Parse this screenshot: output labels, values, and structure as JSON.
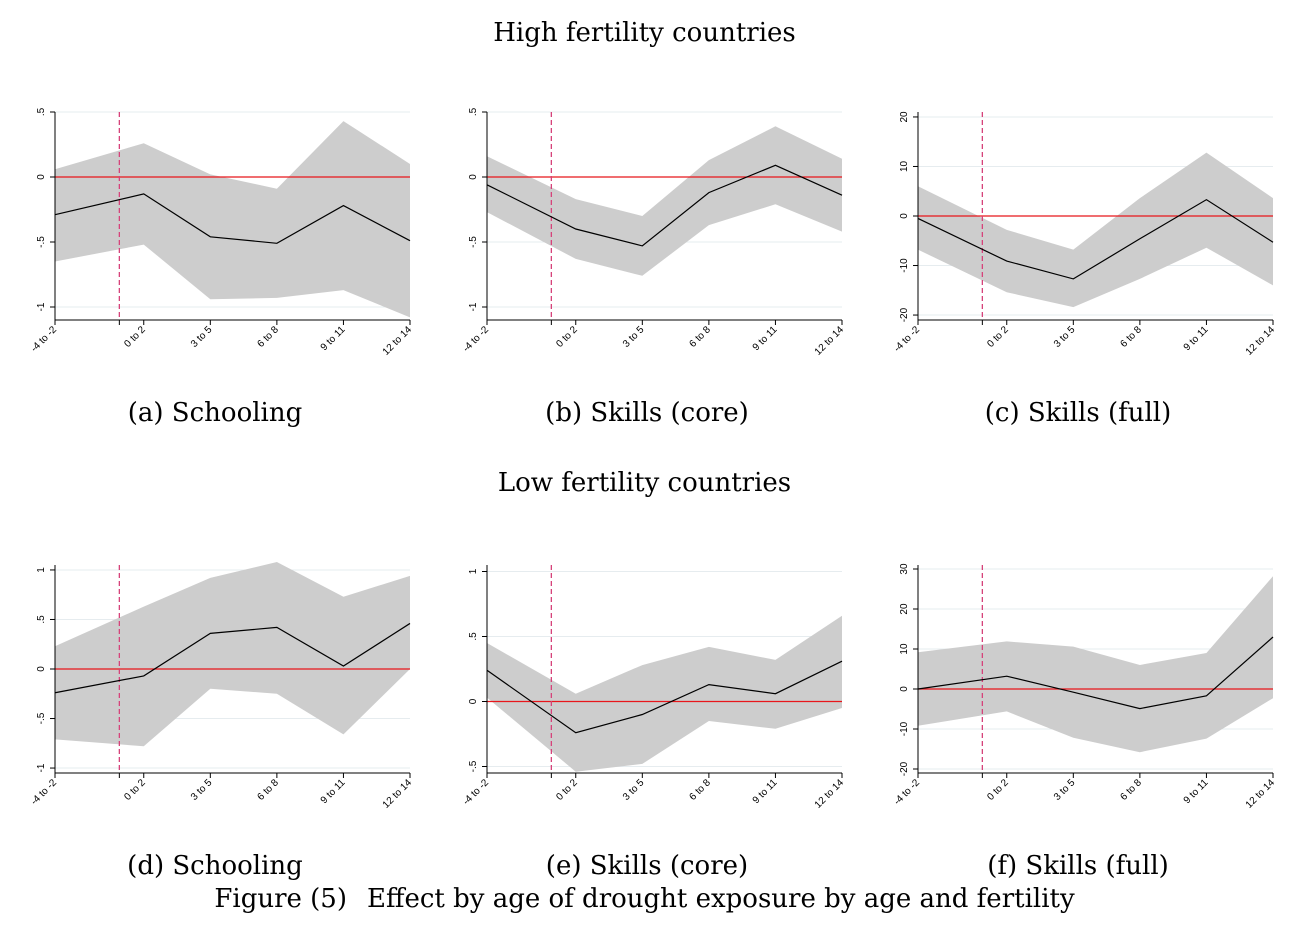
{
  "figure": {
    "number": "Figure (5)",
    "caption": "Effect by age of drought exposure by age and fertility"
  },
  "groups": [
    {
      "title": "High fertility countries"
    },
    {
      "title": "Low fertility countries"
    }
  ],
  "colors": {
    "ci_band": "#cdcdcd",
    "estimate_line": "#000000",
    "zero_line": "#e8161b",
    "event_line": "#d6427a",
    "grid": "#e6ecef"
  },
  "chart_data": [
    {
      "type": "area",
      "caption": "(a) Schooling",
      "group": 0,
      "categories": [
        "-4 to -2",
        "",
        "0 to 2",
        "3 to 5",
        "6 to 8",
        "9 to 11",
        "12 to 14"
      ],
      "x": [
        -3,
        1,
        4,
        7,
        10,
        13
      ],
      "xlim": [
        -3,
        13
      ],
      "event_x": -0.1,
      "yticks": [
        -1,
        -0.5,
        0,
        0.5
      ],
      "ytick_labels": [
        "-1",
        "-.5",
        "0",
        ".5"
      ],
      "ylim": [
        -1.1,
        0.5
      ],
      "estimate": [
        -0.29,
        -0.13,
        -0.46,
        -0.51,
        -0.22,
        -0.49
      ],
      "ci_upper": [
        0.06,
        0.26,
        0.02,
        -0.09,
        0.43,
        0.1
      ],
      "ci_lower": [
        -0.65,
        -0.52,
        -0.94,
        -0.93,
        -0.87,
        -1.08
      ]
    },
    {
      "type": "area",
      "caption": "(b) Skills (core)",
      "group": 0,
      "categories": [
        "-4 to -2",
        "",
        "0 to 2",
        "3 to 5",
        "6 to 8",
        "9 to 11",
        "12 to 14"
      ],
      "x": [
        -3,
        1,
        4,
        7,
        10,
        13
      ],
      "xlim": [
        -3,
        13
      ],
      "event_x": -0.1,
      "yticks": [
        -1,
        -0.5,
        0,
        0.5
      ],
      "ytick_labels": [
        "-1",
        "-.5",
        "0",
        ".5"
      ],
      "ylim": [
        -1.1,
        0.5
      ],
      "estimate": [
        -0.06,
        -0.4,
        -0.53,
        -0.12,
        0.09,
        -0.14
      ],
      "ci_upper": [
        0.16,
        -0.17,
        -0.3,
        0.13,
        0.39,
        0.14
      ],
      "ci_lower": [
        -0.27,
        -0.63,
        -0.76,
        -0.37,
        -0.21,
        -0.42
      ]
    },
    {
      "type": "area",
      "caption": "(c) Skills (full)",
      "group": 0,
      "categories": [
        "-4 to -2",
        "",
        "0 to 2",
        "3 to 5",
        "6 to 8",
        "9 to 11",
        "12 to 14"
      ],
      "x": [
        -3,
        1,
        4,
        7,
        10,
        13
      ],
      "xlim": [
        -3,
        13
      ],
      "event_x": -0.1,
      "yticks": [
        -20,
        -10,
        0,
        10,
        20
      ],
      "ytick_labels": [
        "-20",
        "-10",
        "0",
        "10",
        "20"
      ],
      "ylim": [
        -21,
        21
      ],
      "estimate": [
        -0.5,
        -9.1,
        -12.7,
        -4.6,
        3.3,
        -5.3
      ],
      "ci_upper": [
        6.0,
        -2.8,
        -6.8,
        3.6,
        12.8,
        3.6
      ],
      "ci_lower": [
        -6.8,
        -15.4,
        -18.4,
        -12.7,
        -6.4,
        -14.0
      ]
    },
    {
      "type": "area",
      "caption": "(d) Schooling",
      "group": 1,
      "categories": [
        "-4 to -2",
        "",
        "0 to 2",
        "3 to 5",
        "6 to 8",
        "9 to 11",
        "12 to 14"
      ],
      "x": [
        -3,
        1,
        4,
        7,
        10,
        13
      ],
      "xlim": [
        -3,
        13
      ],
      "event_x": -0.1,
      "yticks": [
        -1,
        -0.5,
        0,
        0.5,
        1
      ],
      "ytick_labels": [
        "-1",
        "-.5",
        "0",
        ".5",
        "1"
      ],
      "ylim": [
        -1.05,
        1.05
      ],
      "estimate": [
        -0.24,
        -0.07,
        0.36,
        0.42,
        0.03,
        0.46
      ],
      "ci_upper": [
        0.23,
        0.63,
        0.92,
        1.08,
        0.73,
        0.94
      ],
      "ci_lower": [
        -0.71,
        -0.78,
        -0.2,
        -0.25,
        -0.66,
        0.0
      ]
    },
    {
      "type": "area",
      "caption": "(e) Skills (core)",
      "group": 1,
      "categories": [
        "-4 to -2",
        "",
        "0 to 2",
        "3 to 5",
        "6 to 8",
        "9 to 11",
        "12 to 14"
      ],
      "x": [
        -3,
        1,
        4,
        7,
        10,
        13
      ],
      "xlim": [
        -3,
        13
      ],
      "event_x": -0.1,
      "yticks": [
        -0.5,
        0,
        0.5,
        1
      ],
      "ytick_labels": [
        "-.5",
        "0",
        ".5",
        "1"
      ],
      "ylim": [
        -0.55,
        1.05
      ],
      "estimate": [
        0.24,
        -0.24,
        -0.1,
        0.13,
        0.06,
        0.31
      ],
      "ci_upper": [
        0.45,
        0.06,
        0.28,
        0.42,
        0.32,
        0.66
      ],
      "ci_lower": [
        0.03,
        -0.54,
        -0.48,
        -0.15,
        -0.21,
        -0.05
      ]
    },
    {
      "type": "area",
      "caption": "(f) Skills (full)",
      "group": 1,
      "categories": [
        "-4 to -2",
        "",
        "0 to 2",
        "3 to 5",
        "6 to 8",
        "9 to 11",
        "12 to 14"
      ],
      "x": [
        -3,
        1,
        4,
        7,
        10,
        13
      ],
      "xlim": [
        -3,
        13
      ],
      "event_x": -0.1,
      "yticks": [
        -20,
        -10,
        0,
        10,
        20,
        30
      ],
      "ytick_labels": [
        "-20",
        "-10",
        "0",
        "10",
        "20",
        "30"
      ],
      "ylim": [
        -21,
        31
      ],
      "estimate": [
        0.0,
        3.2,
        -0.8,
        -4.9,
        -1.7,
        13.0
      ],
      "ci_upper": [
        9.2,
        11.9,
        10.6,
        6.0,
        9.0,
        28.2
      ],
      "ci_lower": [
        -9.2,
        -5.6,
        -12.2,
        -15.8,
        -12.4,
        -2.3
      ]
    }
  ]
}
